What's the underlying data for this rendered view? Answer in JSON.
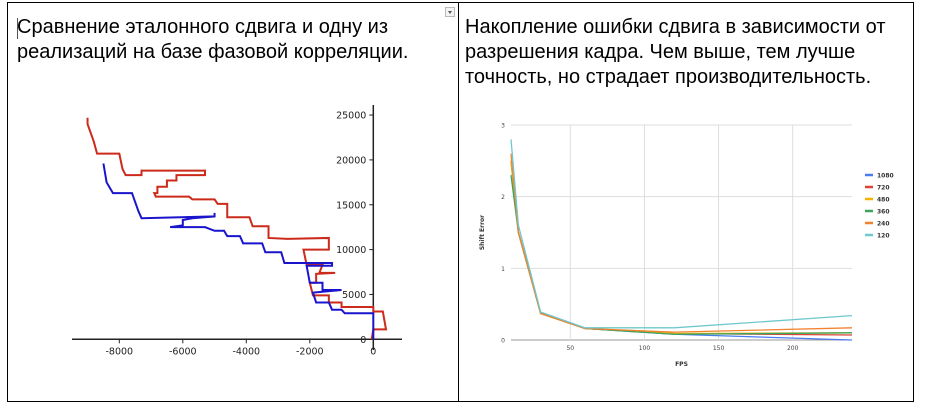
{
  "cells": {
    "left_text": "Сравнение эталонного сдвига и одну из реализаций на базе фазовой корреляции.",
    "right_text": "Накопление ошибки сдвига в зависимости от разрешения кадра. Чем выше, тем лучше точность, но страдает производительность."
  },
  "chart_data": [
    {
      "type": "line",
      "xlim": [
        -9500,
        900
      ],
      "ylim": [
        -300,
        26000
      ],
      "xticks": [
        "-8000",
        "-6000",
        "-4000",
        "-2000",
        "0"
      ],
      "xtick_values": [
        -8000,
        -6000,
        -4000,
        -2000,
        0
      ],
      "yticks": [
        "0",
        "5000",
        "10000",
        "15000",
        "20000",
        "25000"
      ],
      "ytick_values": [
        0,
        5000,
        10000,
        15000,
        20000,
        25000
      ],
      "grid": false,
      "series": [
        {
          "color": "#cc2a1a",
          "points": [
            [
              -9000,
              24700
            ],
            [
              -9000,
              24000
            ],
            [
              -8800,
              22000
            ],
            [
              -8700,
              20700
            ],
            [
              -8000,
              20700
            ],
            [
              -7900,
              19000
            ],
            [
              -7800,
              18300
            ],
            [
              -7300,
              18300
            ],
            [
              -7300,
              18800
            ],
            [
              -5300,
              18800
            ],
            [
              -5300,
              18300
            ],
            [
              -6200,
              18300
            ],
            [
              -6200,
              17700
            ],
            [
              -6500,
              17700
            ],
            [
              -6500,
              17000
            ],
            [
              -6800,
              17000
            ],
            [
              -6800,
              16300
            ],
            [
              -6900,
              16300
            ],
            [
              -6850,
              15900
            ],
            [
              -5800,
              15900
            ],
            [
              -5700,
              15600
            ],
            [
              -5000,
              15600
            ],
            [
              -4900,
              15100
            ],
            [
              -4600,
              15100
            ],
            [
              -4600,
              13600
            ],
            [
              -3900,
              13600
            ],
            [
              -3800,
              12600
            ],
            [
              -3300,
              12600
            ],
            [
              -3300,
              11300
            ],
            [
              -2700,
              11200
            ],
            [
              -1400,
              11300
            ],
            [
              -1400,
              10000
            ],
            [
              -2200,
              10000
            ],
            [
              -2100,
              8300
            ],
            [
              -1600,
              8300
            ],
            [
              -1700,
              7400
            ],
            [
              -1200,
              7400
            ],
            [
              -1800,
              7300
            ],
            [
              -1800,
              6300
            ],
            [
              -2000,
              6300
            ],
            [
              -1900,
              4900
            ],
            [
              -1400,
              4900
            ],
            [
              -1400,
              4100
            ],
            [
              -1000,
              4100
            ],
            [
              -1000,
              3600
            ],
            [
              0,
              3600
            ],
            [
              0,
              3100
            ],
            [
              300,
              3100
            ],
            [
              400,
              1100
            ],
            [
              0,
              1100
            ],
            [
              -50,
              0
            ]
          ]
        },
        {
          "color": "#1a14cc",
          "points": [
            [
              -8500,
              19600
            ],
            [
              -8400,
              17500
            ],
            [
              -8200,
              16300
            ],
            [
              -7600,
              16300
            ],
            [
              -7400,
              14300
            ],
            [
              -7300,
              13500
            ],
            [
              -5000,
              13700
            ],
            [
              -5000,
              14100
            ],
            [
              -5000,
              13700
            ],
            [
              -5700,
              13500
            ],
            [
              -6000,
              13300
            ],
            [
              -6000,
              12700
            ],
            [
              -6400,
              12500
            ],
            [
              -5300,
              12500
            ],
            [
              -5000,
              12100
            ],
            [
              -4700,
              12100
            ],
            [
              -4600,
              11500
            ],
            [
              -4200,
              11500
            ],
            [
              -4100,
              10700
            ],
            [
              -3500,
              10700
            ],
            [
              -3400,
              9700
            ],
            [
              -2900,
              9700
            ],
            [
              -2800,
              8500
            ],
            [
              -1300,
              8500
            ],
            [
              -1300,
              8200
            ],
            [
              -2100,
              8200
            ],
            [
              -2000,
              6300
            ],
            [
              -1600,
              6300
            ],
            [
              -1600,
              5500
            ],
            [
              -1000,
              5500
            ],
            [
              -1900,
              5200
            ],
            [
              -1800,
              4100
            ],
            [
              -1400,
              4100
            ],
            [
              -1300,
              3300
            ],
            [
              -1000,
              3300
            ],
            [
              -900,
              2900
            ],
            [
              0,
              2900
            ],
            [
              0,
              0
            ]
          ]
        }
      ]
    },
    {
      "type": "line",
      "xlabel": "FPS",
      "ylabel": "Shift Error",
      "xlim": [
        10,
        240
      ],
      "ylim": [
        0,
        3
      ],
      "xticks": [
        "50",
        "100",
        "150",
        "200"
      ],
      "xtick_values": [
        50,
        100,
        150,
        200
      ],
      "yticks": [
        "0",
        "1",
        "2",
        "3"
      ],
      "ytick_values": [
        0,
        1,
        2,
        3
      ],
      "grid": true,
      "legend": "right",
      "x": [
        10,
        15,
        30,
        60,
        120,
        240
      ],
      "series": [
        {
          "name": "1080",
          "color": "#4a7cf0",
          "values": [
            2.5,
            1.5,
            0.38,
            0.16,
            0.08,
            0.0
          ]
        },
        {
          "name": "720",
          "color": "#db4437",
          "values": [
            2.5,
            1.5,
            0.37,
            0.16,
            0.09,
            0.07
          ]
        },
        {
          "name": "480",
          "color": "#f4b400",
          "values": [
            2.5,
            1.5,
            0.37,
            0.16,
            0.09,
            0.1
          ]
        },
        {
          "name": "360",
          "color": "#3ba55c",
          "values": [
            2.3,
            1.5,
            0.37,
            0.16,
            0.08,
            0.1
          ]
        },
        {
          "name": "240",
          "color": "#f2822e",
          "values": [
            2.6,
            1.5,
            0.37,
            0.16,
            0.11,
            0.17
          ]
        },
        {
          "name": "120",
          "color": "#6fc8cf",
          "values": [
            2.8,
            1.6,
            0.39,
            0.17,
            0.17,
            0.34
          ]
        }
      ]
    }
  ]
}
